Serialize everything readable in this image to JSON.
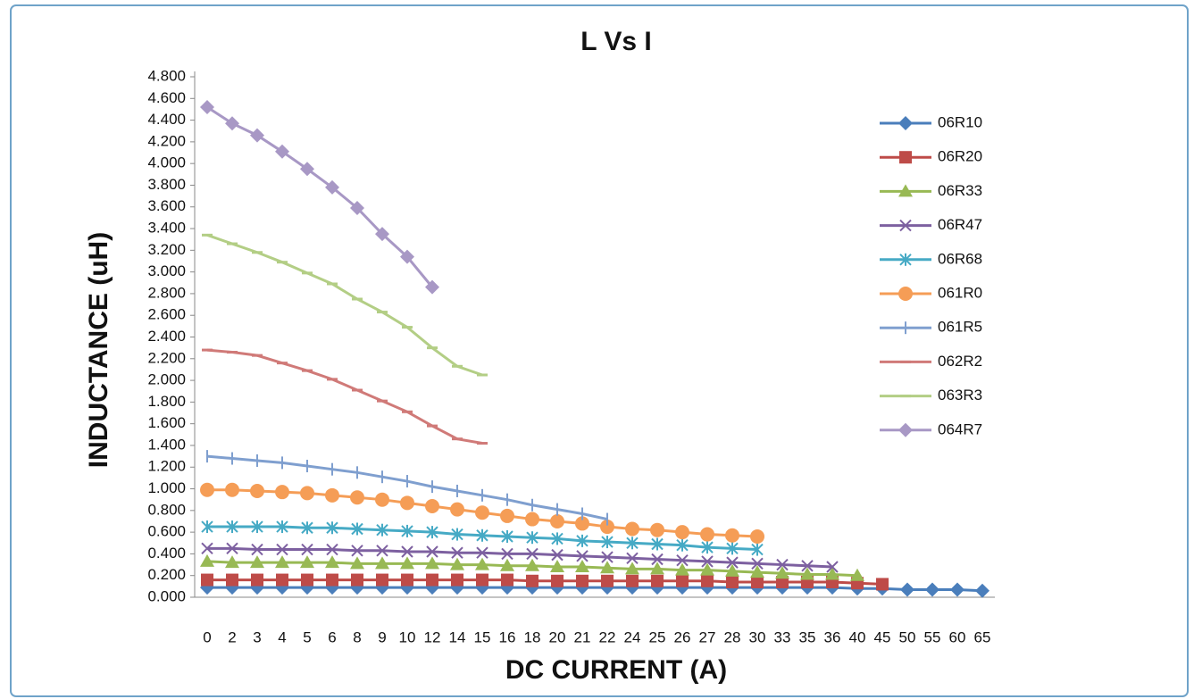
{
  "chart_data": {
    "type": "line",
    "title": "L Vs I",
    "x_label": "DC CURRENT (A)",
    "y_label": "INDUCTANCE (uH)",
    "categories": [
      "0",
      "2",
      "3",
      "4",
      "5",
      "6",
      "8",
      "9",
      "10",
      "12",
      "14",
      "15",
      "16",
      "18",
      "20",
      "21",
      "22",
      "24",
      "25",
      "26",
      "27",
      "28",
      "30",
      "33",
      "35",
      "36",
      "40",
      "45",
      "50",
      "55",
      "60",
      "65"
    ],
    "ylim": [
      0,
      4.8
    ],
    "yticks": [
      {
        "value": 0,
        "label": "0.000"
      },
      {
        "value": 0.2,
        "label": "0.200"
      },
      {
        "value": 0.4,
        "label": "0.400"
      },
      {
        "value": 0.6,
        "label": "0.600"
      },
      {
        "value": 0.8,
        "label": "0.800"
      },
      {
        "value": 1.0,
        "label": "1.000"
      },
      {
        "value": 1.2,
        "label": "1.200"
      },
      {
        "value": 1.4,
        "label": "1.400"
      },
      {
        "value": 1.6,
        "label": "1.600"
      },
      {
        "value": 1.8,
        "label": "1.800"
      },
      {
        "value": 2.0,
        "label": "2.000"
      },
      {
        "value": 2.2,
        "label": "2.200"
      },
      {
        "value": 2.4,
        "label": "2.400"
      },
      {
        "value": 2.6,
        "label": "2.600"
      },
      {
        "value": 2.8,
        "label": "2.800"
      },
      {
        "value": 3.0,
        "label": "3.000"
      },
      {
        "value": 3.2,
        "label": "3.200"
      },
      {
        "value": 3.4,
        "label": "3.400"
      },
      {
        "value": 3.6,
        "label": "3.600"
      },
      {
        "value": 3.8,
        "label": "3.800"
      },
      {
        "value": 4.0,
        "label": "4.000"
      },
      {
        "value": 4.2,
        "label": "4.200"
      },
      {
        "value": 4.4,
        "label": "4.400"
      },
      {
        "value": 4.6,
        "label": "4.600"
      },
      {
        "value": 4.8,
        "label": "4.800"
      }
    ],
    "grid": false,
    "legend": "right",
    "series": [
      {
        "name": "06R10",
        "color": "#4a7ebb",
        "marker": "diamond",
        "values": [
          0.09,
          0.09,
          0.09,
          0.09,
          0.09,
          0.09,
          0.09,
          0.09,
          0.09,
          0.09,
          0.09,
          0.09,
          0.09,
          0.09,
          0.09,
          0.09,
          0.09,
          0.09,
          0.09,
          0.09,
          0.09,
          0.09,
          0.09,
          0.09,
          0.09,
          0.09,
          0.08,
          0.08,
          0.07,
          0.07,
          0.07,
          0.06
        ]
      },
      {
        "name": "06R20",
        "color": "#be4b48",
        "marker": "square",
        "values": [
          0.16,
          0.16,
          0.16,
          0.16,
          0.16,
          0.16,
          0.16,
          0.16,
          0.16,
          0.16,
          0.16,
          0.16,
          0.16,
          0.15,
          0.15,
          0.15,
          0.15,
          0.15,
          0.15,
          0.15,
          0.15,
          0.14,
          0.14,
          0.14,
          0.14,
          0.14,
          0.13,
          0.12,
          null,
          null,
          null,
          null
        ]
      },
      {
        "name": "06R33",
        "color": "#98b954",
        "marker": "triangle",
        "values": [
          0.33,
          0.32,
          0.32,
          0.32,
          0.32,
          0.32,
          0.31,
          0.31,
          0.31,
          0.31,
          0.3,
          0.3,
          0.29,
          0.29,
          0.28,
          0.28,
          0.27,
          0.26,
          0.26,
          0.25,
          0.25,
          0.24,
          0.23,
          0.22,
          0.21,
          0.21,
          0.2,
          null,
          null,
          null,
          null,
          null
        ]
      },
      {
        "name": "06R47",
        "color": "#7d60a0",
        "marker": "x",
        "values": [
          0.45,
          0.45,
          0.44,
          0.44,
          0.44,
          0.44,
          0.43,
          0.43,
          0.42,
          0.42,
          0.41,
          0.41,
          0.4,
          0.4,
          0.39,
          0.38,
          0.37,
          0.36,
          0.35,
          0.34,
          0.33,
          0.32,
          0.31,
          0.3,
          0.29,
          0.28,
          null,
          null,
          null,
          null,
          null,
          null
        ]
      },
      {
        "name": "06R68",
        "color": "#46aac5",
        "marker": "star",
        "values": [
          0.65,
          0.65,
          0.65,
          0.65,
          0.64,
          0.64,
          0.63,
          0.62,
          0.61,
          0.6,
          0.58,
          0.57,
          0.56,
          0.55,
          0.54,
          0.52,
          0.51,
          0.5,
          0.49,
          0.48,
          0.46,
          0.45,
          0.44,
          null,
          null,
          null,
          null,
          null,
          null,
          null,
          null,
          null
        ]
      },
      {
        "name": "061R0",
        "color": "#f59d56",
        "marker": "circle",
        "values": [
          0.99,
          0.99,
          0.98,
          0.97,
          0.96,
          0.94,
          0.92,
          0.9,
          0.87,
          0.84,
          0.81,
          0.78,
          0.75,
          0.72,
          0.7,
          0.68,
          0.65,
          0.63,
          0.62,
          0.6,
          0.58,
          0.57,
          0.56,
          null,
          null,
          null,
          null,
          null,
          null,
          null,
          null,
          null
        ]
      },
      {
        "name": "061R5",
        "color": "#7f9fcf",
        "marker": "plus",
        "values": [
          1.3,
          1.28,
          1.26,
          1.24,
          1.21,
          1.18,
          1.15,
          1.11,
          1.07,
          1.02,
          0.98,
          0.94,
          0.9,
          0.85,
          0.81,
          0.77,
          0.72,
          null,
          null,
          null,
          null,
          null,
          null,
          null,
          null,
          null,
          null,
          null,
          null,
          null,
          null,
          null
        ]
      },
      {
        "name": "062R2",
        "color": "#d07a78",
        "marker": "dash",
        "values": [
          2.28,
          2.26,
          2.23,
          2.16,
          2.09,
          2.01,
          1.91,
          1.81,
          1.71,
          1.58,
          1.46,
          1.42,
          null,
          null,
          null,
          null,
          null,
          null,
          null,
          null,
          null,
          null,
          null,
          null,
          null,
          null,
          null,
          null,
          null,
          null,
          null,
          null
        ]
      },
      {
        "name": "063R3",
        "color": "#b3ce85",
        "marker": "dash",
        "values": [
          3.34,
          3.26,
          3.18,
          3.09,
          2.99,
          2.89,
          2.75,
          2.63,
          2.49,
          2.3,
          2.13,
          2.05,
          null,
          null,
          null,
          null,
          null,
          null,
          null,
          null,
          null,
          null,
          null,
          null,
          null,
          null,
          null,
          null,
          null,
          null,
          null,
          null
        ]
      },
      {
        "name": "064R7",
        "color": "#a898c5",
        "marker": "diamond",
        "values": [
          4.52,
          4.37,
          4.26,
          4.11,
          3.95,
          3.78,
          3.59,
          3.35,
          3.14,
          2.86,
          null,
          null,
          null,
          null,
          null,
          null,
          null,
          null,
          null,
          null,
          null,
          null,
          null,
          null,
          null,
          null,
          null,
          null,
          null,
          null,
          null,
          null
        ]
      }
    ]
  }
}
